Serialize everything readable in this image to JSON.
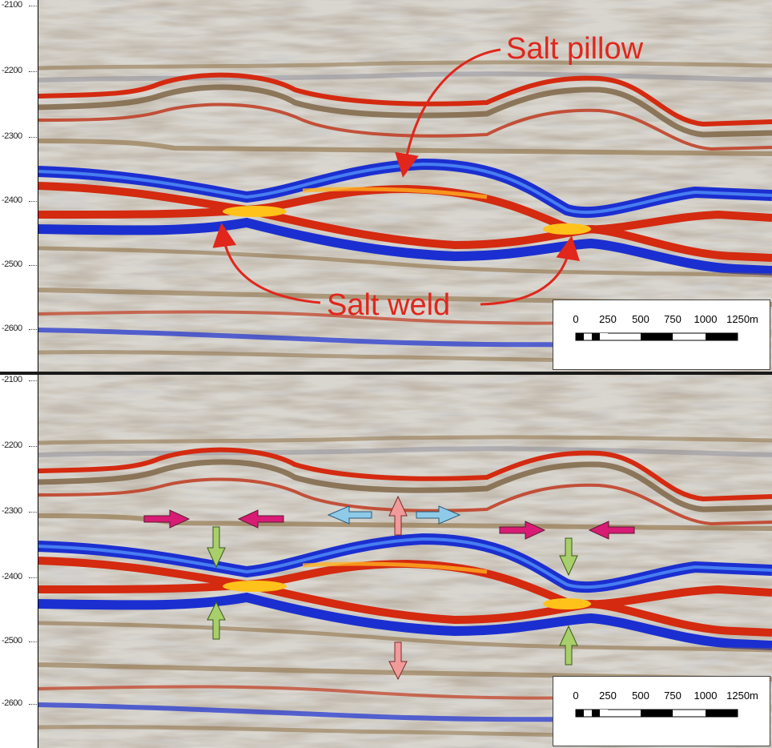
{
  "panels": {
    "top": {
      "axis_ticks": [
        "-2100",
        "-2200",
        "-2300",
        "-2400",
        "-2500",
        "-2600"
      ],
      "annotations": {
        "salt_pillow": "Salt pillow",
        "salt_weld": "Salt weld"
      },
      "scale_bar": {
        "labels": [
          "0",
          "250",
          "500",
          "750",
          "1000",
          "1250m"
        ]
      }
    },
    "bottom": {
      "axis_ticks": [
        "-2100",
        "-2200",
        "-2300",
        "-2400",
        "-2500",
        "-2600"
      ],
      "scale_bar": {
        "labels": [
          "0",
          "250",
          "500",
          "750",
          "1000",
          "1250m"
        ]
      },
      "arrow_colors": {
        "magenta": "#d81b75",
        "light_blue": "#8fcbe8",
        "pink": "#f09a9a",
        "green": "#a8cf6a"
      }
    }
  },
  "colors": {
    "annotation_red": "#e1261c",
    "seismic_blue": "#1b2fd0",
    "seismic_red": "#d42a10",
    "seismic_brown": "#8a6a3c"
  }
}
